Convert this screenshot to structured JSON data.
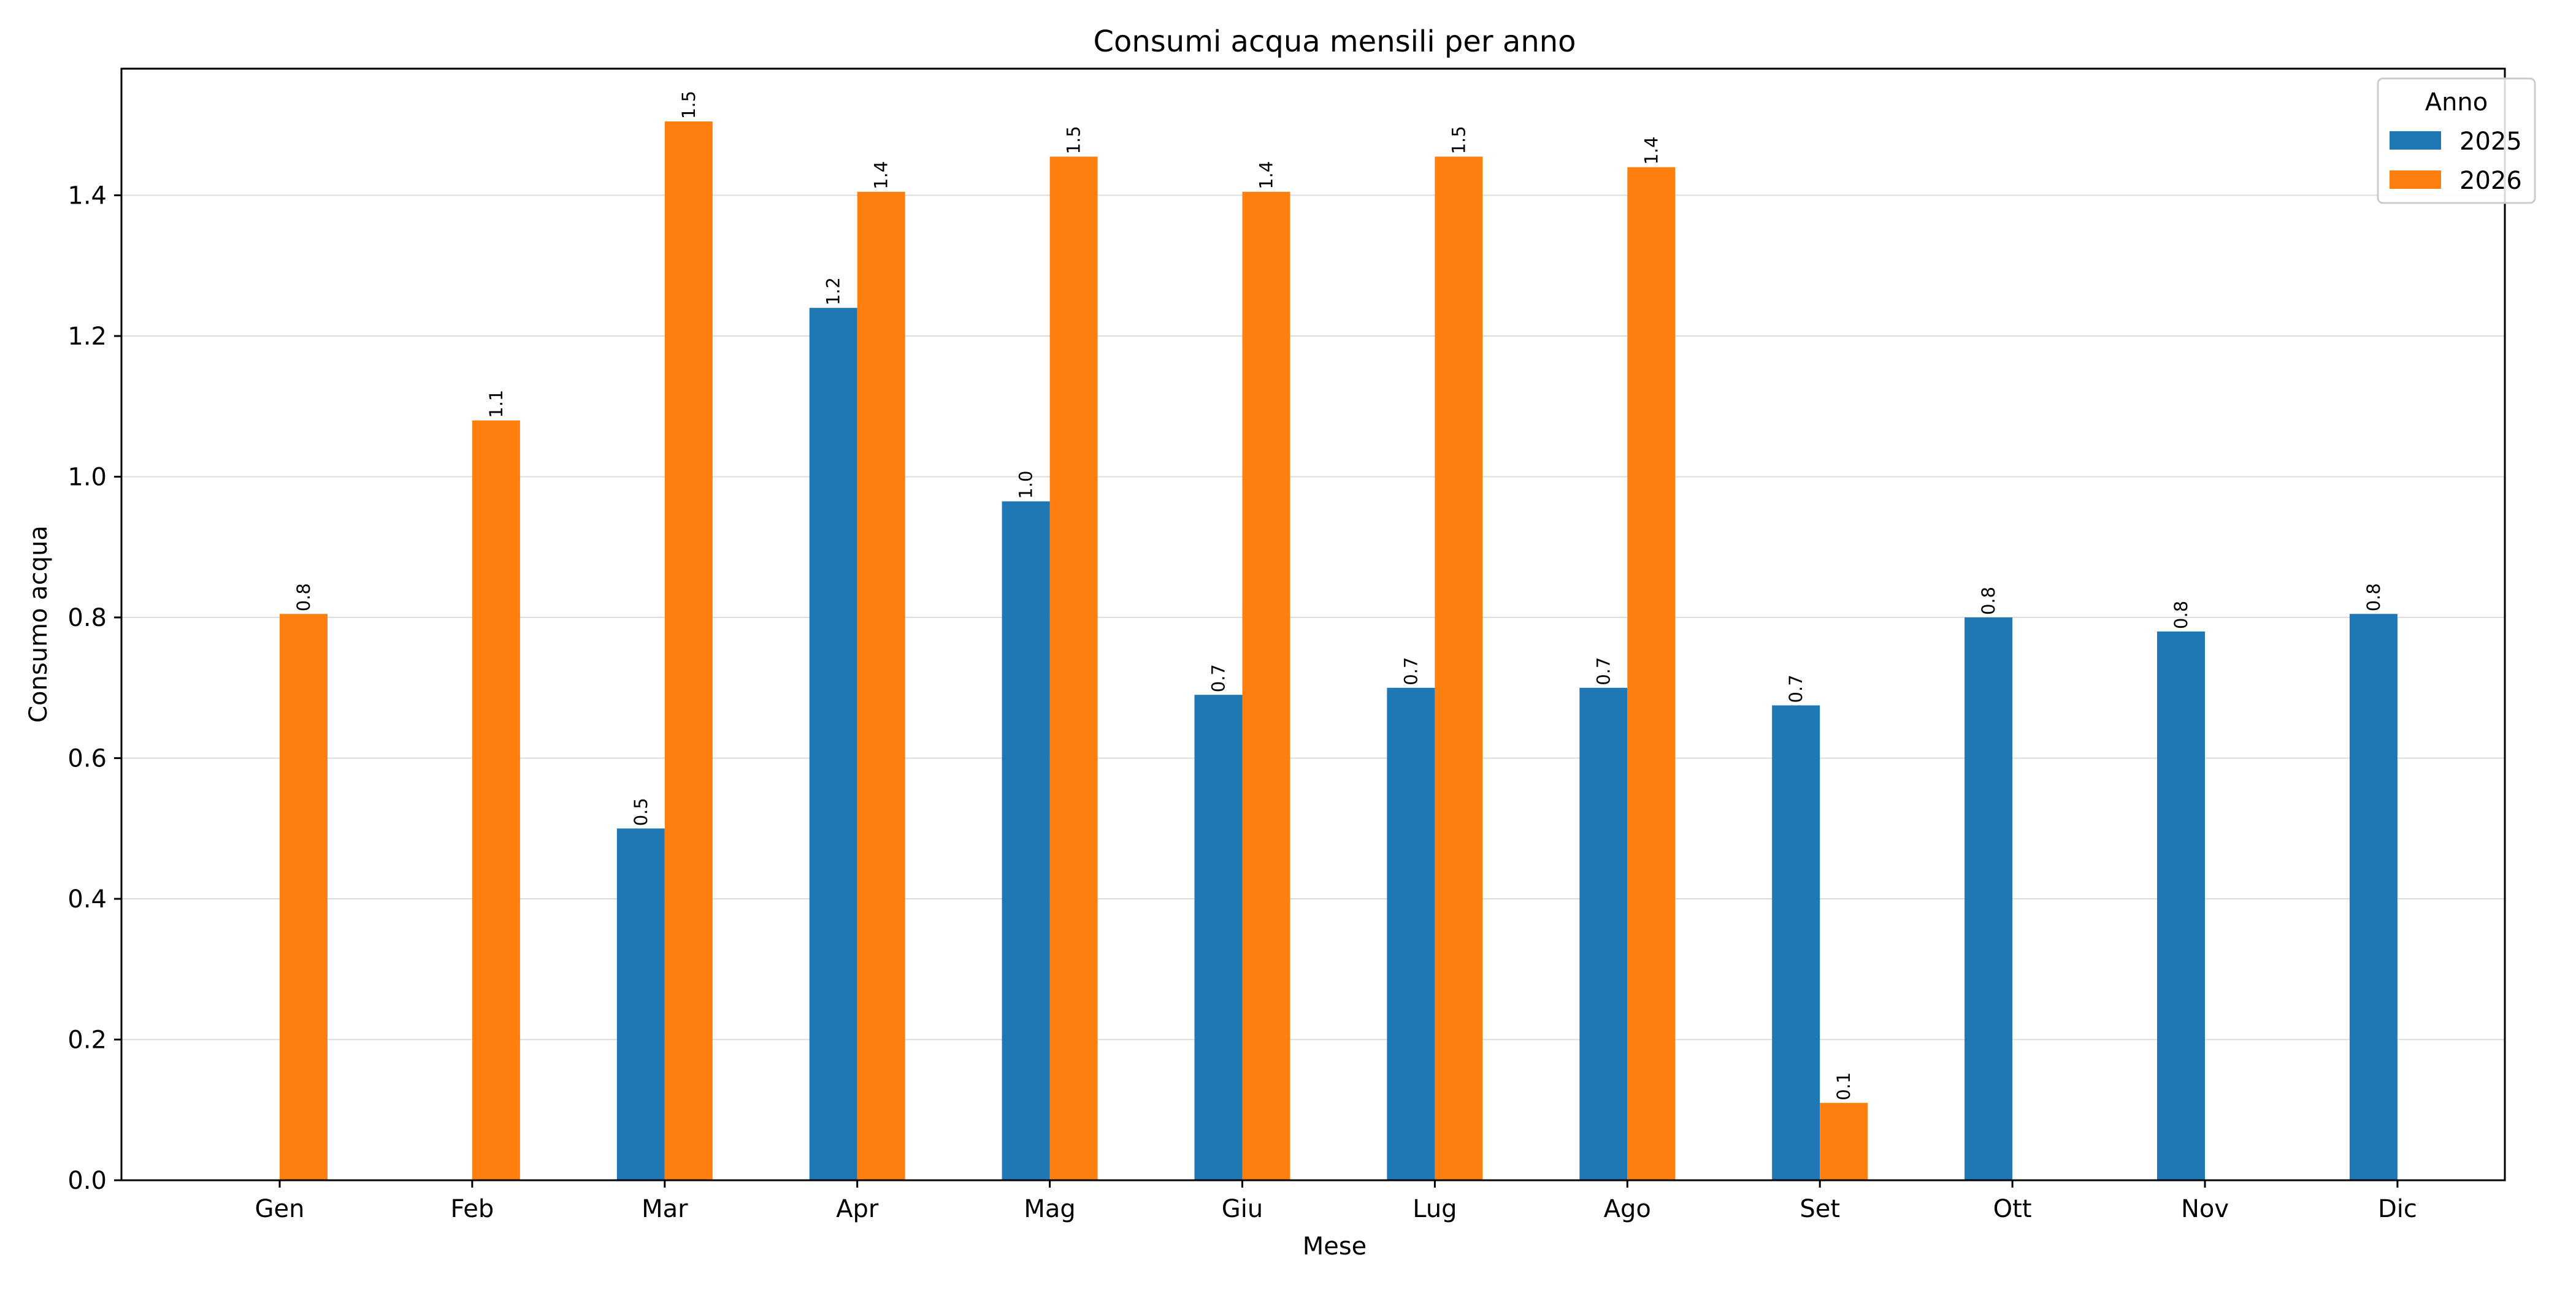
{
  "chart_data": {
    "type": "bar",
    "title": "Consumi acqua mensili per anno",
    "xlabel": "Mese",
    "ylabel": "Consumo acqua",
    "categories": [
      "Gen",
      "Feb",
      "Mar",
      "Apr",
      "Mag",
      "Giu",
      "Lug",
      "Ago",
      "Set",
      "Ott",
      "Nov",
      "Dic"
    ],
    "series": [
      {
        "name": "2025",
        "color": "#1f77b4",
        "values": [
          null,
          null,
          0.5,
          1.24,
          0.965,
          0.69,
          0.7,
          0.7,
          0.675,
          0.8,
          0.78,
          0.805
        ],
        "labels": [
          "",
          "",
          "0.5",
          "1.2",
          "1.0",
          "0.7",
          "0.7",
          "0.7",
          "0.7",
          "0.8",
          "0.8",
          "0.8"
        ]
      },
      {
        "name": "2026",
        "color": "#ff7f0e",
        "values": [
          0.805,
          1.08,
          1.505,
          1.405,
          1.455,
          1.405,
          1.455,
          1.44,
          0.11,
          null,
          null,
          null
        ],
        "labels": [
          "0.8",
          "1.1",
          "1.5",
          "1.4",
          "1.5",
          "1.4",
          "1.5",
          "1.4",
          "0.1",
          "",
          "",
          ""
        ]
      }
    ],
    "ylim": [
      0,
      1.58
    ],
    "yticks": [
      "0.0",
      "0.2",
      "0.4",
      "0.6",
      "0.8",
      "1.0",
      "1.2",
      "1.4"
    ],
    "grid": "y",
    "legend": {
      "title": "Anno",
      "placement": "top-right"
    }
  }
}
